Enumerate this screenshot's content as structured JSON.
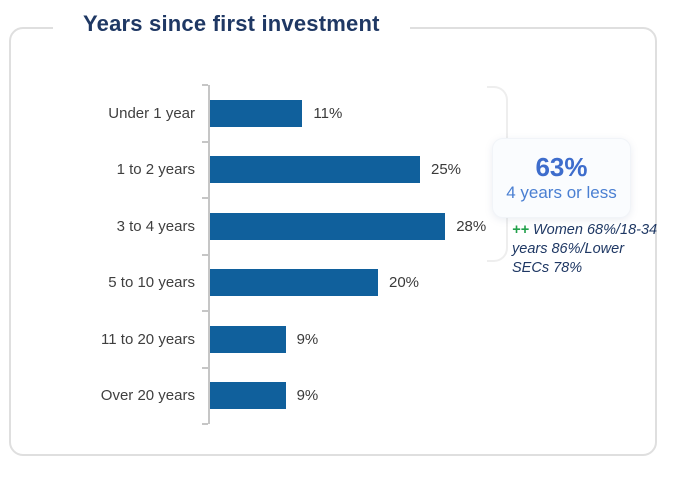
{
  "chart_data": {
    "type": "bar",
    "orientation": "horizontal",
    "title": "Years since first investment",
    "categories": [
      "Under 1 year",
      "1 to 2 years",
      "3 to 4 years",
      "5 to 10 years",
      "11 to 20 years",
      "Over 20 years"
    ],
    "values": [
      11,
      25,
      28,
      20,
      9,
      9
    ],
    "value_labels": [
      "11%",
      "25%",
      "28%",
      "20%",
      "9%",
      "9%"
    ],
    "xlim": [
      0,
      30
    ],
    "grid": false,
    "legend": "none",
    "bar_color": "#10609c",
    "axis_color": "#c6c6c6"
  },
  "callout": {
    "value": "63%",
    "label": "4 years or less",
    "accent_color": "#3e6dcc"
  },
  "annotation": {
    "marker": "++",
    "text": "Women 68%/18-34 years 86%/Lower SECs 78%",
    "marker_color": "#21a04a"
  },
  "colors": {
    "title": "#1f3864",
    "card_border": "#dfdfdf",
    "label_text": "#3f3f3f"
  }
}
